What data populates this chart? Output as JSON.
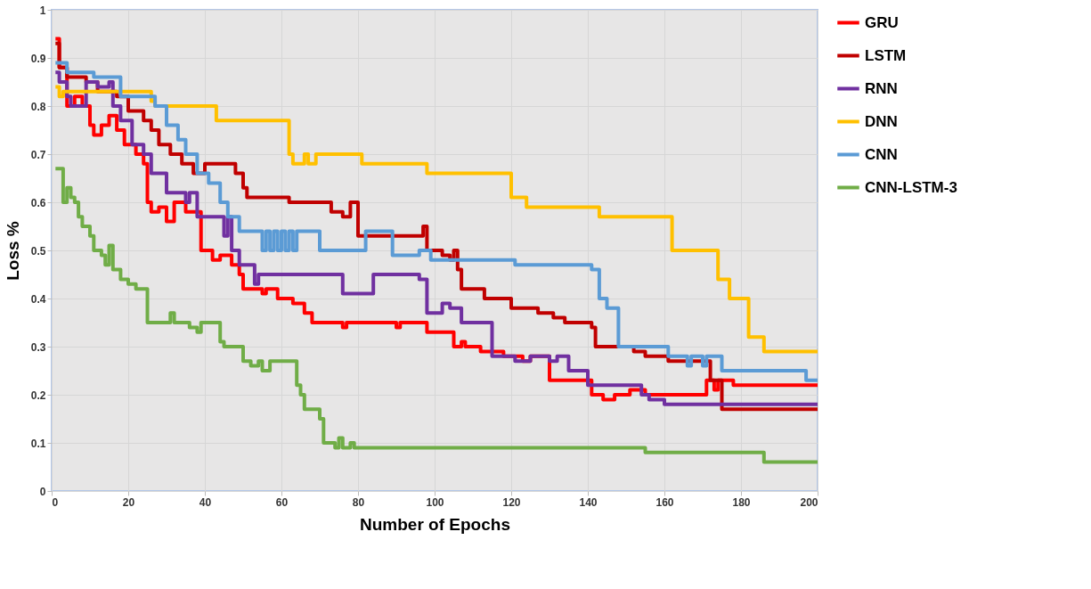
{
  "chart_data": {
    "type": "step",
    "xlabel": "Number of Epochs",
    "ylabel": "Loss %",
    "xlim": [
      0,
      200
    ],
    "xticks": [
      0,
      20,
      40,
      60,
      80,
      100,
      120,
      140,
      160,
      180,
      200
    ],
    "ylim": [
      0,
      1
    ],
    "yticks": [
      0,
      0.1,
      0.2,
      0.3,
      0.4,
      0.5,
      0.6,
      0.7,
      0.8,
      0.9,
      1
    ],
    "grid": true,
    "legend": "right",
    "line_style": "solid",
    "marker": "none",
    "series": [
      {
        "name": "GRU",
        "color": "#ff0000",
        "x": [
          1,
          2,
          4,
          6,
          8,
          10,
          11,
          13,
          15,
          17,
          19,
          22,
          24,
          25,
          26,
          28,
          30,
          32,
          35,
          39,
          42,
          44,
          47,
          49,
          50,
          55,
          56,
          59,
          63,
          66,
          68,
          76,
          77,
          90,
          91,
          98,
          105,
          107,
          108,
          112,
          118,
          123,
          125,
          130,
          141,
          144,
          147,
          151,
          155,
          171,
          173,
          174,
          178,
          200
        ],
        "values": [
          0.94,
          0.88,
          0.8,
          0.82,
          0.8,
          0.76,
          0.74,
          0.76,
          0.78,
          0.75,
          0.72,
          0.7,
          0.68,
          0.6,
          0.58,
          0.59,
          0.56,
          0.6,
          0.58,
          0.5,
          0.48,
          0.49,
          0.47,
          0.45,
          0.42,
          0.41,
          0.42,
          0.4,
          0.39,
          0.37,
          0.35,
          0.34,
          0.35,
          0.34,
          0.35,
          0.33,
          0.3,
          0.31,
          0.3,
          0.29,
          0.28,
          0.27,
          0.28,
          0.23,
          0.2,
          0.19,
          0.2,
          0.21,
          0.2,
          0.23,
          0.21,
          0.23,
          0.22,
          0.22
        ]
      },
      {
        "name": "LSTM",
        "color": "#c00000",
        "x": [
          1,
          2,
          4,
          9,
          12,
          17,
          20,
          24,
          26,
          28,
          31,
          34,
          37,
          40,
          48,
          50,
          51,
          62,
          73,
          76,
          78,
          80,
          97,
          98,
          102,
          104,
          105,
          106,
          107,
          113,
          120,
          127,
          131,
          134,
          141,
          142,
          145,
          152,
          155,
          161,
          172,
          175,
          200
        ],
        "values": [
          0.93,
          0.88,
          0.86,
          0.85,
          0.83,
          0.82,
          0.79,
          0.77,
          0.75,
          0.72,
          0.7,
          0.68,
          0.66,
          0.68,
          0.66,
          0.63,
          0.61,
          0.6,
          0.58,
          0.57,
          0.6,
          0.53,
          0.55,
          0.5,
          0.49,
          0.48,
          0.5,
          0.46,
          0.42,
          0.4,
          0.38,
          0.37,
          0.36,
          0.35,
          0.34,
          0.3,
          0.3,
          0.29,
          0.28,
          0.27,
          0.23,
          0.17,
          0.17
        ]
      },
      {
        "name": "RNN",
        "color": "#7030a0",
        "x": [
          1,
          2,
          4,
          5,
          9,
          12,
          15,
          16,
          18,
          21,
          24,
          26,
          30,
          35,
          36,
          38,
          45,
          46,
          47,
          49,
          53,
          54,
          76,
          84,
          96,
          98,
          102,
          104,
          107,
          115,
          121,
          125,
          130,
          132,
          135,
          140,
          154,
          156,
          160,
          200
        ],
        "values": [
          0.87,
          0.85,
          0.82,
          0.8,
          0.85,
          0.84,
          0.85,
          0.8,
          0.77,
          0.72,
          0.7,
          0.66,
          0.62,
          0.6,
          0.62,
          0.57,
          0.53,
          0.57,
          0.5,
          0.47,
          0.43,
          0.45,
          0.41,
          0.45,
          0.44,
          0.37,
          0.39,
          0.38,
          0.35,
          0.28,
          0.27,
          0.28,
          0.27,
          0.28,
          0.25,
          0.22,
          0.2,
          0.19,
          0.18,
          0.18
        ]
      },
      {
        "name": "DNN",
        "color": "#ffc000",
        "x": [
          1,
          2,
          3,
          26,
          27,
          43,
          62,
          63,
          66,
          67,
          69,
          81,
          98,
          120,
          124,
          143,
          162,
          174,
          177,
          182,
          186,
          200
        ],
        "values": [
          0.84,
          0.82,
          0.83,
          0.81,
          0.8,
          0.77,
          0.7,
          0.68,
          0.7,
          0.68,
          0.7,
          0.68,
          0.66,
          0.61,
          0.59,
          0.57,
          0.5,
          0.44,
          0.4,
          0.32,
          0.29,
          0.29
        ]
      },
      {
        "name": "CNN",
        "color": "#5b9bd5",
        "x": [
          1,
          4,
          11,
          18,
          27,
          30,
          33,
          35,
          38,
          41,
          44,
          46,
          49,
          55,
          56,
          57,
          58,
          59,
          60,
          61,
          62,
          63,
          64,
          70,
          82,
          89,
          96,
          99,
          121,
          141,
          143,
          145,
          148,
          161,
          166,
          167,
          170,
          171,
          175,
          197,
          200
        ],
        "values": [
          0.89,
          0.87,
          0.86,
          0.82,
          0.8,
          0.76,
          0.73,
          0.7,
          0.66,
          0.64,
          0.6,
          0.57,
          0.54,
          0.5,
          0.54,
          0.5,
          0.54,
          0.5,
          0.54,
          0.5,
          0.54,
          0.5,
          0.54,
          0.5,
          0.54,
          0.49,
          0.5,
          0.48,
          0.47,
          0.46,
          0.4,
          0.38,
          0.3,
          0.28,
          0.26,
          0.28,
          0.26,
          0.28,
          0.25,
          0.23,
          0.23
        ]
      },
      {
        "name": "CNN-LSTM-3",
        "color": "#70ad47",
        "x": [
          1,
          3,
          4,
          5,
          6,
          7,
          8,
          10,
          11,
          13,
          14,
          15,
          16,
          18,
          20,
          22,
          25,
          31,
          32,
          36,
          38,
          39,
          44,
          45,
          50,
          52,
          54,
          55,
          57,
          64,
          65,
          66,
          70,
          71,
          74,
          75,
          76,
          78,
          79,
          155,
          186,
          200
        ],
        "values": [
          0.67,
          0.6,
          0.63,
          0.61,
          0.6,
          0.57,
          0.55,
          0.53,
          0.5,
          0.49,
          0.47,
          0.51,
          0.46,
          0.44,
          0.43,
          0.42,
          0.35,
          0.37,
          0.35,
          0.34,
          0.33,
          0.35,
          0.31,
          0.3,
          0.27,
          0.26,
          0.27,
          0.25,
          0.27,
          0.22,
          0.2,
          0.17,
          0.15,
          0.1,
          0.09,
          0.11,
          0.09,
          0.1,
          0.09,
          0.08,
          0.06,
          0.06
        ]
      }
    ]
  }
}
